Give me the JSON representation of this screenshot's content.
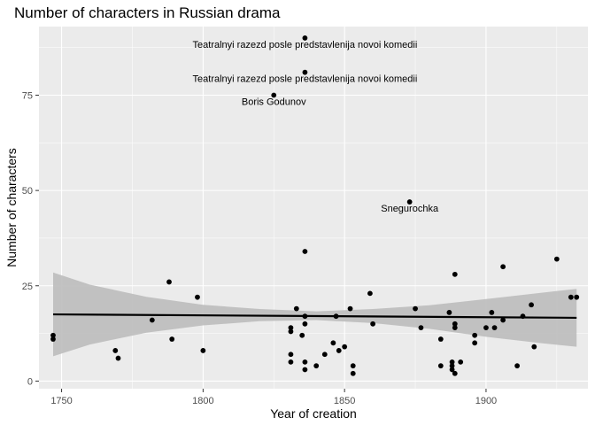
{
  "chart_data": {
    "type": "scatter",
    "title": "Number of characters in Russian drama",
    "xlabel": "Year of creation",
    "ylabel": "Number of characters",
    "xlim": [
      1742,
      1936
    ],
    "ylim": [
      -2,
      93
    ],
    "xticks": [
      1750,
      1800,
      1850,
      1900
    ],
    "xminor": [
      1775,
      1825,
      1875,
      1925
    ],
    "yticks": [
      0,
      25,
      50,
      75
    ],
    "yminor": [
      12.5,
      37.5,
      62.5,
      87.5
    ],
    "grid": true,
    "colors": {
      "panel": "#ebebeb",
      "grid": "#ffffff",
      "point": "#000000",
      "trend": "#000000",
      "band": "#bdbdbd"
    },
    "points": [
      {
        "x": 1747,
        "y": 12
      },
      {
        "x": 1747,
        "y": 11
      },
      {
        "x": 1769,
        "y": 8
      },
      {
        "x": 1770,
        "y": 6
      },
      {
        "x": 1782,
        "y": 16
      },
      {
        "x": 1788,
        "y": 26
      },
      {
        "x": 1789,
        "y": 11
      },
      {
        "x": 1798,
        "y": 22
      },
      {
        "x": 1800,
        "y": 8
      },
      {
        "x": 1825,
        "y": 75
      },
      {
        "x": 1831,
        "y": 14
      },
      {
        "x": 1831,
        "y": 13
      },
      {
        "x": 1831,
        "y": 7
      },
      {
        "x": 1831,
        "y": 5
      },
      {
        "x": 1833,
        "y": 19
      },
      {
        "x": 1835,
        "y": 12
      },
      {
        "x": 1836,
        "y": 17
      },
      {
        "x": 1836,
        "y": 15
      },
      {
        "x": 1836,
        "y": 90
      },
      {
        "x": 1836,
        "y": 81
      },
      {
        "x": 1836,
        "y": 34
      },
      {
        "x": 1836,
        "y": 5
      },
      {
        "x": 1836,
        "y": 3
      },
      {
        "x": 1840,
        "y": 4
      },
      {
        "x": 1843,
        "y": 7
      },
      {
        "x": 1846,
        "y": 10
      },
      {
        "x": 1847,
        "y": 17
      },
      {
        "x": 1848,
        "y": 8
      },
      {
        "x": 1850,
        "y": 9
      },
      {
        "x": 1852,
        "y": 19
      },
      {
        "x": 1853,
        "y": 4
      },
      {
        "x": 1853,
        "y": 2
      },
      {
        "x": 1859,
        "y": 23
      },
      {
        "x": 1860,
        "y": 15
      },
      {
        "x": 1873,
        "y": 47
      },
      {
        "x": 1875,
        "y": 19
      },
      {
        "x": 1877,
        "y": 14
      },
      {
        "x": 1884,
        "y": 11
      },
      {
        "x": 1884,
        "y": 4
      },
      {
        "x": 1887,
        "y": 18
      },
      {
        "x": 1888,
        "y": 5
      },
      {
        "x": 1888,
        "y": 4
      },
      {
        "x": 1888,
        "y": 3
      },
      {
        "x": 1889,
        "y": 2
      },
      {
        "x": 1889,
        "y": 15
      },
      {
        "x": 1889,
        "y": 14
      },
      {
        "x": 1889,
        "y": 28
      },
      {
        "x": 1891,
        "y": 5
      },
      {
        "x": 1896,
        "y": 12
      },
      {
        "x": 1896,
        "y": 10
      },
      {
        "x": 1900,
        "y": 14
      },
      {
        "x": 1902,
        "y": 18
      },
      {
        "x": 1903,
        "y": 14
      },
      {
        "x": 1906,
        "y": 30
      },
      {
        "x": 1906,
        "y": 16
      },
      {
        "x": 1911,
        "y": 4
      },
      {
        "x": 1913,
        "y": 17
      },
      {
        "x": 1916,
        "y": 20
      },
      {
        "x": 1917,
        "y": 9
      },
      {
        "x": 1925,
        "y": 32
      },
      {
        "x": 1930,
        "y": 22
      },
      {
        "x": 1932,
        "y": 22
      }
    ],
    "trend": {
      "x": [
        1747,
        1932
      ],
      "y": [
        17.5,
        16.6
      ],
      "band_x": [
        1747,
        1760,
        1780,
        1800,
        1820,
        1840,
        1860,
        1880,
        1900,
        1920,
        1932
      ],
      "band_lower": [
        6.5,
        9.6,
        12.7,
        14.6,
        15.7,
        16.0,
        15.2,
        13.7,
        11.6,
        9.9,
        9.0
      ],
      "band_upper": [
        28.5,
        25.3,
        22.1,
        20.0,
        18.9,
        18.3,
        18.9,
        19.9,
        21.5,
        23.2,
        24.2
      ]
    },
    "annotations": [
      {
        "x": 1836,
        "y": 90,
        "text": "Teatralnyi razezd posle predstavlenija novoi komedii"
      },
      {
        "x": 1836,
        "y": 81,
        "text": "Teatralnyi razezd posle predstavlenija novoi komedii"
      },
      {
        "x": 1825,
        "y": 75,
        "text": "Boris Godunov"
      },
      {
        "x": 1873,
        "y": 47,
        "text": "Snegurochka"
      }
    ]
  }
}
